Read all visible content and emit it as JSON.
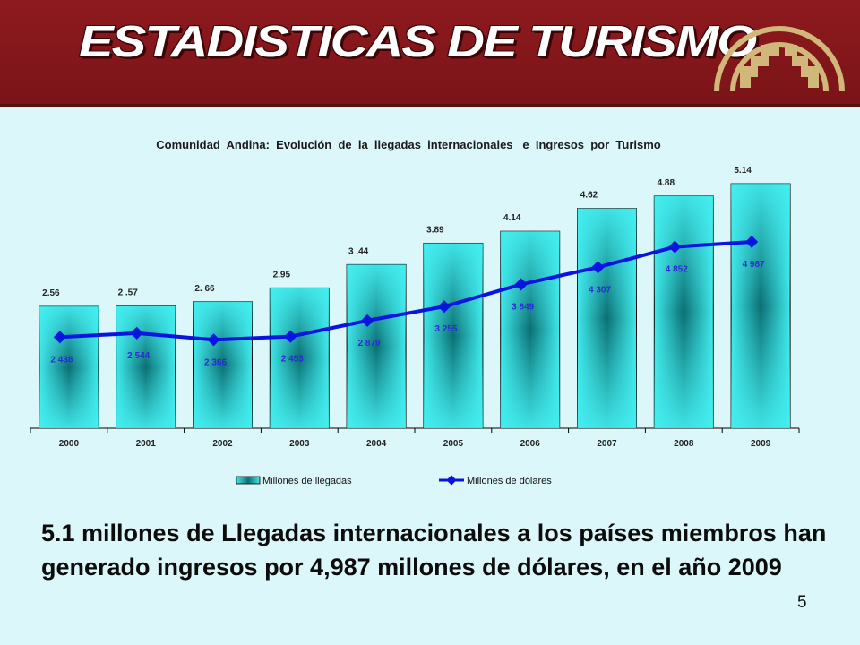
{
  "header": {
    "title": "ESTADISTICAS DE TURISMO"
  },
  "chart_data": {
    "type": "bar",
    "title": "Comunidad  Andina:  Evolución  de  la  llegadas  internacionales   e  Ingresos  por  Turismo",
    "categories": [
      "2000",
      "2001",
      "2002",
      "2003",
      "2004",
      "2005",
      "2006",
      "2007",
      "2008",
      "2009"
    ],
    "series": [
      {
        "name": "Millones de llegadas",
        "type": "bar",
        "values": [
          2.56,
          2.57,
          2.66,
          2.95,
          3.44,
          3.89,
          4.14,
          4.62,
          4.88,
          5.14
        ],
        "labels": [
          "2.56",
          "2 .57",
          "2. 66",
          "2.95",
          "3 .44",
          "3.89",
          "4.14",
          "4.62",
          "4.88",
          "5.14"
        ]
      },
      {
        "name": "Millones de dólares",
        "type": "line",
        "values": [
          2438,
          2544,
          2366,
          2453,
          2879,
          3255,
          3849,
          4307,
          4852,
          4987
        ],
        "labels": [
          "2 438",
          "2 544",
          "2 366",
          "2 453",
          "2 879",
          "3 255",
          "3 849",
          "4 307",
          "4 852",
          "4 987"
        ]
      }
    ],
    "ylim_bars": [
      0,
      5.5
    ],
    "ylim_line": [
      0,
      7000
    ],
    "legend_position": "bottom",
    "grid": false
  },
  "caption": "5.1 millones de Llegadas internacionales a los países miembros han generado  ingresos por 4,987 millones de dólares, en el año 2009",
  "page_number": "5",
  "colors": {
    "header_bg": "#8e1a1e",
    "page_bg": "#dcf7f9",
    "bar_light": "#3fe8ea",
    "bar_dark": "#0b6f73",
    "line": "#0a14e0",
    "logo_gold": "#d1b87a"
  }
}
